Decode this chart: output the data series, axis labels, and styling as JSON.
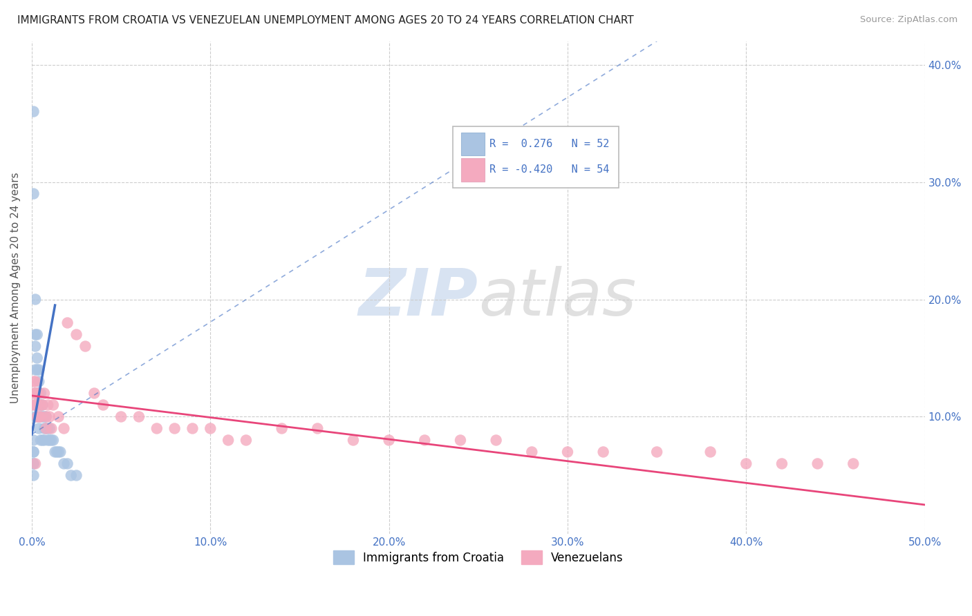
{
  "title": "IMMIGRANTS FROM CROATIA VS VENEZUELAN UNEMPLOYMENT AMONG AGES 20 TO 24 YEARS CORRELATION CHART",
  "source": "Source: ZipAtlas.com",
  "ylabel": "Unemployment Among Ages 20 to 24 years",
  "xlim": [
    0.0,
    0.5
  ],
  "ylim": [
    0.0,
    0.42
  ],
  "xticks": [
    0.0,
    0.1,
    0.2,
    0.3,
    0.4,
    0.5
  ],
  "xtick_labels": [
    "0.0%",
    "10.0%",
    "20.0%",
    "30.0%",
    "40.0%",
    "50.0%"
  ],
  "yticks": [
    0.1,
    0.2,
    0.3,
    0.4
  ],
  "ytick_labels": [
    "10.0%",
    "20.0%",
    "30.0%",
    "40.0%"
  ],
  "r_croatia": 0.276,
  "n_croatia": 52,
  "r_venezuela": -0.42,
  "n_venezuela": 54,
  "color_croatia": "#aac4e2",
  "color_venezuela": "#f4aabf",
  "line_color_croatia": "#4472c4",
  "line_color_venezuela": "#e8457a",
  "background_color": "#ffffff",
  "grid_color": "#cccccc",
  "watermark_zip": "ZIP",
  "watermark_atlas": "atlas",
  "legend_r1": "R =  0.276",
  "legend_n1": "N = 52",
  "legend_r2": "R = -0.420",
  "legend_n2": "N = 54",
  "legend_label1": "Immigrants from Croatia",
  "legend_label2": "Venezuelans",
  "croatia_x": [
    0.001,
    0.001,
    0.001,
    0.001,
    0.001,
    0.002,
    0.002,
    0.002,
    0.002,
    0.002,
    0.002,
    0.003,
    0.003,
    0.003,
    0.003,
    0.003,
    0.003,
    0.004,
    0.004,
    0.004,
    0.004,
    0.004,
    0.005,
    0.005,
    0.005,
    0.005,
    0.006,
    0.006,
    0.006,
    0.007,
    0.007,
    0.007,
    0.008,
    0.008,
    0.009,
    0.009,
    0.01,
    0.01,
    0.011,
    0.012,
    0.013,
    0.014,
    0.015,
    0.016,
    0.018,
    0.02,
    0.022,
    0.025,
    0.001,
    0.001,
    0.001,
    0.002
  ],
  "croatia_y": [
    0.36,
    0.29,
    0.08,
    0.07,
    0.06,
    0.17,
    0.16,
    0.14,
    0.12,
    0.11,
    0.1,
    0.17,
    0.15,
    0.14,
    0.12,
    0.11,
    0.1,
    0.14,
    0.13,
    0.12,
    0.11,
    0.09,
    0.12,
    0.11,
    0.1,
    0.08,
    0.11,
    0.1,
    0.08,
    0.1,
    0.09,
    0.08,
    0.1,
    0.09,
    0.09,
    0.08,
    0.09,
    0.08,
    0.08,
    0.08,
    0.07,
    0.07,
    0.07,
    0.07,
    0.06,
    0.06,
    0.05,
    0.05,
    0.07,
    0.06,
    0.05,
    0.2
  ],
  "venezuela_x": [
    0.001,
    0.001,
    0.002,
    0.002,
    0.002,
    0.003,
    0.003,
    0.003,
    0.004,
    0.004,
    0.005,
    0.005,
    0.006,
    0.007,
    0.008,
    0.008,
    0.009,
    0.01,
    0.011,
    0.012,
    0.015,
    0.018,
    0.02,
    0.025,
    0.03,
    0.035,
    0.04,
    0.05,
    0.06,
    0.07,
    0.08,
    0.09,
    0.1,
    0.11,
    0.12,
    0.14,
    0.16,
    0.18,
    0.2,
    0.22,
    0.24,
    0.26,
    0.28,
    0.3,
    0.32,
    0.35,
    0.38,
    0.4,
    0.42,
    0.44,
    0.46,
    0.001,
    0.003,
    0.002
  ],
  "venezuela_y": [
    0.12,
    0.11,
    0.13,
    0.12,
    0.11,
    0.12,
    0.11,
    0.1,
    0.12,
    0.1,
    0.11,
    0.1,
    0.11,
    0.12,
    0.1,
    0.09,
    0.11,
    0.1,
    0.09,
    0.11,
    0.1,
    0.09,
    0.18,
    0.17,
    0.16,
    0.12,
    0.11,
    0.1,
    0.1,
    0.09,
    0.09,
    0.09,
    0.09,
    0.08,
    0.08,
    0.09,
    0.09,
    0.08,
    0.08,
    0.08,
    0.08,
    0.08,
    0.07,
    0.07,
    0.07,
    0.07,
    0.07,
    0.06,
    0.06,
    0.06,
    0.06,
    0.13,
    0.11,
    0.06
  ],
  "trend_croatia_x0": 0.0,
  "trend_croatia_y0": 0.085,
  "trend_croatia_x1": 0.013,
  "trend_croatia_y1": 0.195,
  "trend_dash_x0": 0.0,
  "trend_dash_y0": 0.085,
  "trend_dash_x1": 0.35,
  "trend_dash_y1": 0.42,
  "trend_venezuela_x0": 0.0,
  "trend_venezuela_y0": 0.118,
  "trend_venezuela_x1": 0.5,
  "trend_venezuela_y1": 0.025
}
